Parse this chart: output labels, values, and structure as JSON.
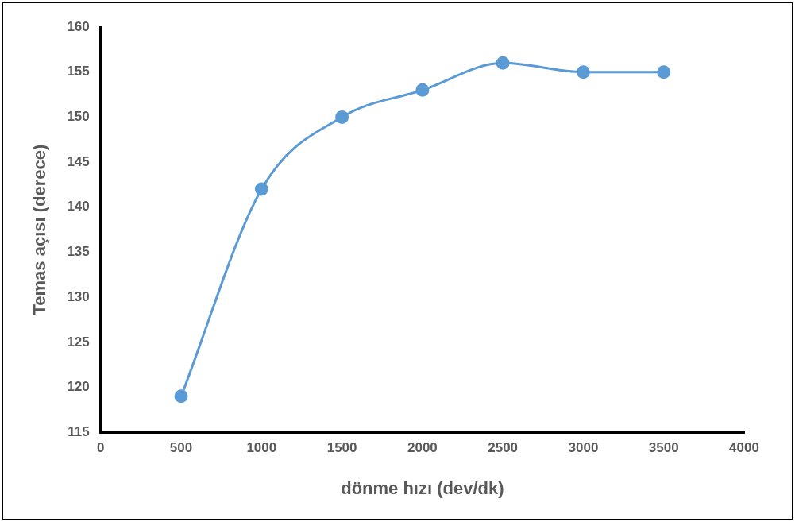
{
  "chart_data": {
    "type": "line",
    "xlabel": "dönme hızı (dev/dk)",
    "ylabel": "Temas açısı (derece)",
    "x": [
      500,
      1000,
      1500,
      2000,
      2500,
      3000,
      3500
    ],
    "series": [
      {
        "color": "#5b9bd5",
        "values": [
          119,
          142,
          150,
          153,
          156,
          155,
          155
        ]
      }
    ],
    "xlim": [
      0,
      4000
    ],
    "xticks": [
      0,
      500,
      1000,
      1500,
      2000,
      2500,
      3000,
      3500,
      4000
    ],
    "ylim": [
      115,
      160
    ],
    "yticks": [
      115,
      120,
      125,
      130,
      135,
      140,
      145,
      150,
      155,
      160
    ],
    "grid": false,
    "legend": false,
    "marker": "circle",
    "line_style": "solid"
  }
}
